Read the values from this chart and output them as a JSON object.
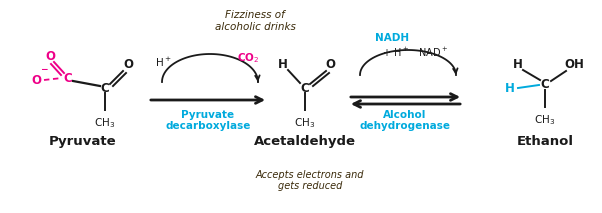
{
  "bg_color": "#ffffff",
  "magenta": "#EE0088",
  "cyan": "#00AADD",
  "black": "#1a1a1a",
  "brown": "#3a2a0a",
  "fizziness1": "Fizziness of",
  "fizziness2": "alcoholic drinks",
  "accepts1": "Accepts electrons and",
  "accepts2": "gets reduced",
  "pyruvate_label": "Pyruvate",
  "acetaldehyde_label": "Acetaldehyde",
  "ethanol_label": "Ethanol",
  "enzyme1a": "Pyruvate",
  "enzyme1b": "decarboxylase",
  "enzyme2a": "Alcohol",
  "enzyme2b": "dehydrogenase",
  "nadh": "NADH",
  "nad_plus": "+ H⁺   NAD⁺"
}
